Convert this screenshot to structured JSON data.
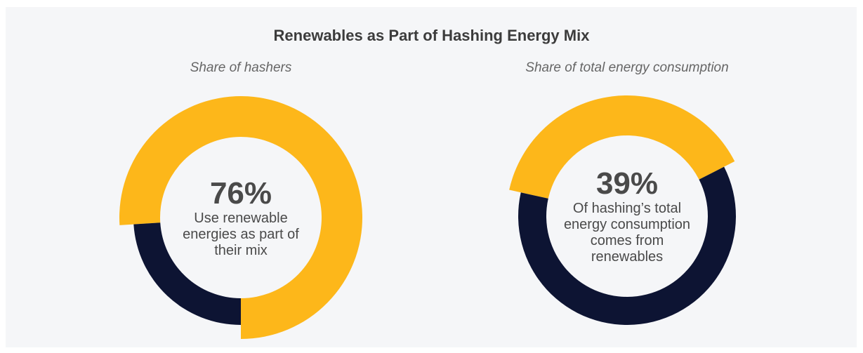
{
  "title": "Renewables as Part of Hashing Energy Mix",
  "chart_data": [
    {
      "type": "donut",
      "subtitle": "Share of hashers",
      "values": [
        76,
        24
      ],
      "value_labels": [
        "76%",
        null
      ],
      "colors": [
        "#fdb71a",
        "#0d1433"
      ],
      "annotation": "Use renewable energies as part of their mix"
    },
    {
      "type": "donut",
      "subtitle": "Share of total energy consumption",
      "values": [
        39,
        61
      ],
      "value_labels": [
        "39%",
        null
      ],
      "colors": [
        "#fdb71a",
        "#0d1433"
      ],
      "annotation": "Of hashing’s total energy consumption comes from renewables"
    }
  ]
}
